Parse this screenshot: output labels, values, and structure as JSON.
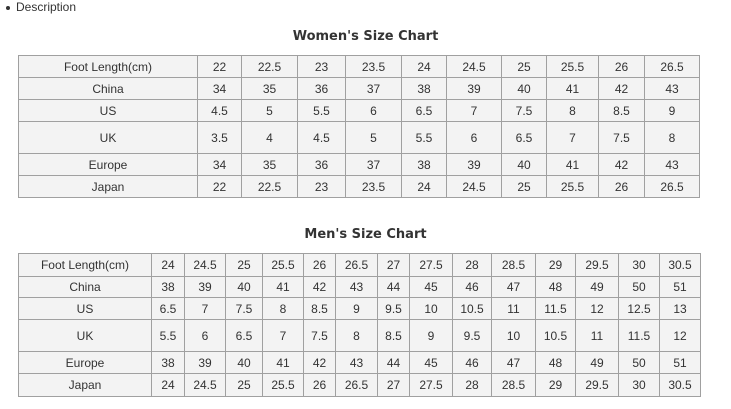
{
  "description_label": "Description",
  "women": {
    "title": "Women's Size Chart",
    "rows": [
      {
        "label": "Foot Length(cm)",
        "values": [
          "22",
          "22.5",
          "23",
          "23.5",
          "24",
          "24.5",
          "25",
          "25.5",
          "26",
          "26.5"
        ]
      },
      {
        "label": "China",
        "values": [
          "34",
          "35",
          "36",
          "37",
          "38",
          "39",
          "40",
          "41",
          "42",
          "43"
        ]
      },
      {
        "label": "US",
        "values": [
          "4.5",
          "5",
          "5.5",
          "6",
          "6.5",
          "7",
          "7.5",
          "8",
          "8.5",
          "9"
        ]
      },
      {
        "label": "UK",
        "values": [
          "3.5",
          "4",
          "4.5",
          "5",
          "5.5",
          "6",
          "6.5",
          "7",
          "7.5",
          "8"
        ]
      },
      {
        "label": "Europe",
        "values": [
          "34",
          "35",
          "36",
          "37",
          "38",
          "39",
          "40",
          "41",
          "42",
          "43"
        ]
      },
      {
        "label": "Japan",
        "values": [
          "22",
          "22.5",
          "23",
          "23.5",
          "24",
          "24.5",
          "25",
          "25.5",
          "26",
          "26.5"
        ]
      }
    ]
  },
  "men": {
    "title": "Men's Size Chart",
    "rows": [
      {
        "label": "Foot Length(cm)",
        "values": [
          "24",
          "24.5",
          "25",
          "25.5",
          "26",
          "26.5",
          "27",
          "27.5",
          "28",
          "28.5",
          "29",
          "29.5",
          "30",
          "30.5"
        ]
      },
      {
        "label": "China",
        "values": [
          "38",
          "39",
          "40",
          "41",
          "42",
          "43",
          "44",
          "45",
          "46",
          "47",
          "48",
          "49",
          "50",
          "51"
        ]
      },
      {
        "label": "US",
        "values": [
          "6.5",
          "7",
          "7.5",
          "8",
          "8.5",
          "9",
          "9.5",
          "10",
          "10.5",
          "11",
          "11.5",
          "12",
          "12.5",
          "13"
        ]
      },
      {
        "label": "UK",
        "values": [
          "5.5",
          "6",
          "6.5",
          "7",
          "7.5",
          "8",
          "8.5",
          "9",
          "9.5",
          "10",
          "10.5",
          "11",
          "11.5",
          "12"
        ]
      },
      {
        "label": "Europe",
        "values": [
          "38",
          "39",
          "40",
          "41",
          "42",
          "43",
          "44",
          "45",
          "46",
          "47",
          "48",
          "49",
          "50",
          "51"
        ]
      },
      {
        "label": "Japan",
        "values": [
          "24",
          "24.5",
          "25",
          "25.5",
          "26",
          "26.5",
          "27",
          "27.5",
          "28",
          "28.5",
          "29",
          "29.5",
          "30",
          "30.5"
        ]
      }
    ]
  }
}
